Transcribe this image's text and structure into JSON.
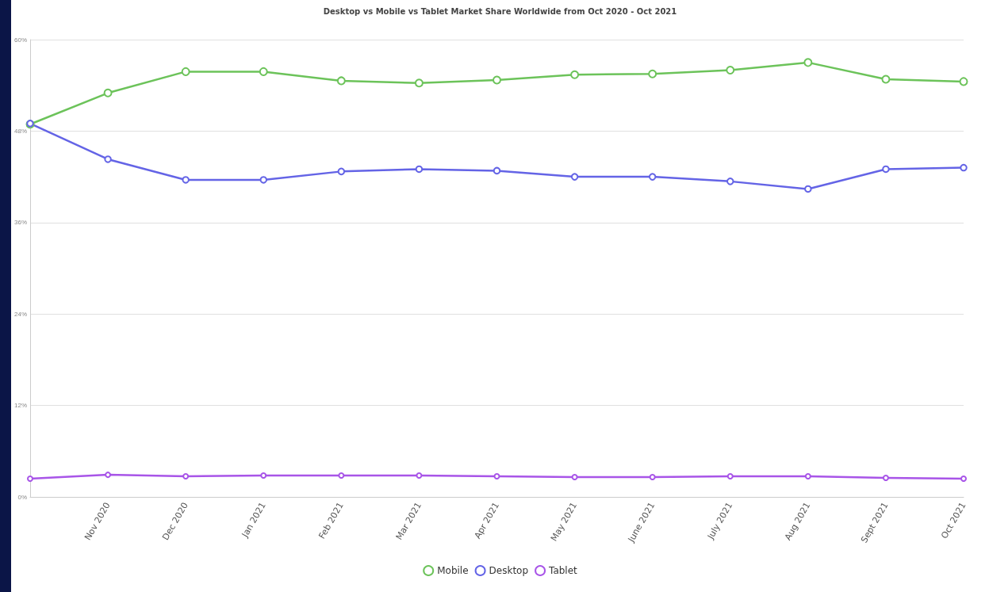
{
  "chart_data": {
    "type": "line",
    "subtitle": "Desktop vs Mobile vs Tablet Market Share Worldwide from Oct 2020 - Oct 2021",
    "categories": [
      null,
      "Nov 2020",
      "Dec 2020",
      "Jan 2021",
      "Feb 2021",
      "Mar 2021",
      "Apr 2021",
      "May 2021",
      "June 2021",
      "July 2021",
      "Aug 2021",
      "Sept 2021",
      "Oct 2021"
    ],
    "series": [
      {
        "name": "Mobile",
        "color": "#6cc35a",
        "values": [
          48.9,
          53.0,
          55.8,
          55.8,
          54.6,
          54.3,
          54.7,
          55.4,
          55.5,
          56.0,
          57.0,
          54.8,
          54.5
        ]
      },
      {
        "name": "Desktop",
        "color": "#6464e6",
        "values": [
          49.0,
          44.3,
          41.6,
          41.6,
          42.7,
          43.0,
          42.8,
          42.0,
          42.0,
          41.4,
          40.4,
          43.0,
          43.2
        ]
      },
      {
        "name": "Tablet",
        "color": "#a855e8",
        "values": [
          2.4,
          2.9,
          2.7,
          2.8,
          2.8,
          2.8,
          2.7,
          2.6,
          2.6,
          2.7,
          2.7,
          2.5,
          2.4
        ]
      }
    ],
    "ylim": [
      0,
      60
    ],
    "yticks": [
      {
        "value": 0,
        "label": "0%"
      },
      {
        "value": 12,
        "label": "12%"
      },
      {
        "value": 24,
        "label": "24%"
      },
      {
        "value": 36,
        "label": "36%"
      },
      {
        "value": 48,
        "label": "48%"
      },
      {
        "value": 60,
        "label": "60%"
      }
    ],
    "grid": "y",
    "legend": "bottom",
    "marker": "circle",
    "line_style": "solid"
  }
}
